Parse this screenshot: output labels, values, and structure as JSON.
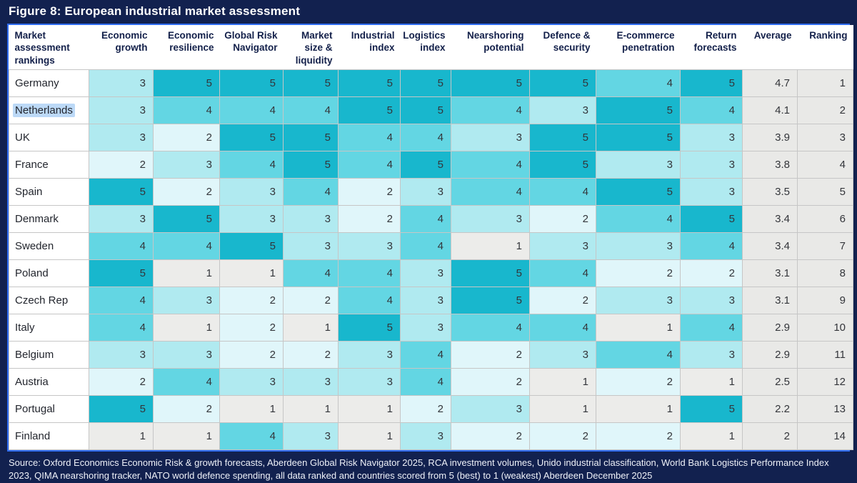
{
  "title": "Figure 8: European industrial market assessment",
  "source": "Source: Oxford Economics Economic Risk & growth forecasts, Aberdeen Global Risk Navigator 2025, RCA investment volumes, Unido industrial classification, World Bank Logistics Performance Index 2023, QIMA nearshoring tracker, NATO world defence spending, all data ranked and countries scored from 5 (best) to 1 (weakest) Aberdeen December 2025",
  "colors": {
    "page_bg": "#12214f",
    "table_border": "#2f6cf0",
    "grid_line": "#c6c6c6",
    "summary_bg": "#e9e9e7",
    "selection_highlight": "#bcd9f7",
    "scale": {
      "1": "#ececea",
      "2": "#e0f6fa",
      "3": "#b0eaf0",
      "4": "#63d6e3",
      "5": "#18b7cd"
    }
  },
  "chart_data": {
    "type": "heatmap",
    "title": "Figure 8: European industrial market assessment",
    "row_header": "Market assessment rankings",
    "columns": [
      "Economic growth",
      "Economic resilience",
      "Global Risk Navigator",
      "Market size & liquidity",
      "Industrial index",
      "Logistics index",
      "Nearshoring potential",
      "Defence & security",
      "E-commerce penetration",
      "Return forecasts"
    ],
    "summary_columns": [
      "Average",
      "Ranking"
    ],
    "value_range": [
      1,
      5
    ],
    "scale_note": "scored from 5 (best) to 1 (weakest)",
    "highlighted_country": "Netherlands",
    "rows": [
      {
        "country": "Germany",
        "values": [
          3,
          5,
          5,
          5,
          5,
          5,
          5,
          5,
          4,
          5
        ],
        "average": "4.7",
        "ranking": "1"
      },
      {
        "country": "Netherlands",
        "values": [
          3,
          4,
          4,
          4,
          5,
          5,
          4,
          3,
          5,
          4
        ],
        "average": "4.1",
        "ranking": "2",
        "highlighted": true
      },
      {
        "country": "UK",
        "values": [
          3,
          2,
          5,
          5,
          4,
          4,
          3,
          5,
          5,
          3
        ],
        "average": "3.9",
        "ranking": "3"
      },
      {
        "country": "France",
        "values": [
          2,
          3,
          4,
          5,
          4,
          5,
          4,
          5,
          3,
          3
        ],
        "average": "3.8",
        "ranking": "4"
      },
      {
        "country": "Spain",
        "values": [
          5,
          2,
          3,
          4,
          2,
          3,
          4,
          4,
          5,
          3
        ],
        "average": "3.5",
        "ranking": "5"
      },
      {
        "country": "Denmark",
        "values": [
          3,
          5,
          3,
          3,
          2,
          4,
          3,
          2,
          4,
          5
        ],
        "average": "3.4",
        "ranking": "6"
      },
      {
        "country": "Sweden",
        "values": [
          4,
          4,
          5,
          3,
          3,
          4,
          1,
          3,
          3,
          4
        ],
        "average": "3.4",
        "ranking": "7"
      },
      {
        "country": "Poland",
        "values": [
          5,
          1,
          1,
          4,
          4,
          3,
          5,
          4,
          2,
          2
        ],
        "average": "3.1",
        "ranking": "8"
      },
      {
        "country": "Czech Rep",
        "values": [
          4,
          3,
          2,
          2,
          4,
          3,
          5,
          2,
          3,
          3
        ],
        "average": "3.1",
        "ranking": "9"
      },
      {
        "country": "Italy",
        "values": [
          4,
          1,
          2,
          1,
          5,
          3,
          4,
          4,
          1,
          4
        ],
        "average": "2.9",
        "ranking": "10"
      },
      {
        "country": "Belgium",
        "values": [
          3,
          3,
          2,
          2,
          3,
          4,
          2,
          3,
          4,
          3
        ],
        "average": "2.9",
        "ranking": "11"
      },
      {
        "country": "Austria",
        "values": [
          2,
          4,
          3,
          3,
          3,
          4,
          2,
          1,
          2,
          1
        ],
        "average": "2.5",
        "ranking": "12"
      },
      {
        "country": "Portugal",
        "values": [
          5,
          2,
          1,
          1,
          1,
          2,
          3,
          1,
          1,
          5
        ],
        "average": "2.2",
        "ranking": "13"
      },
      {
        "country": "Finland",
        "values": [
          1,
          1,
          4,
          3,
          1,
          3,
          2,
          2,
          2,
          1
        ],
        "average": "2",
        "ranking": "14"
      }
    ]
  }
}
